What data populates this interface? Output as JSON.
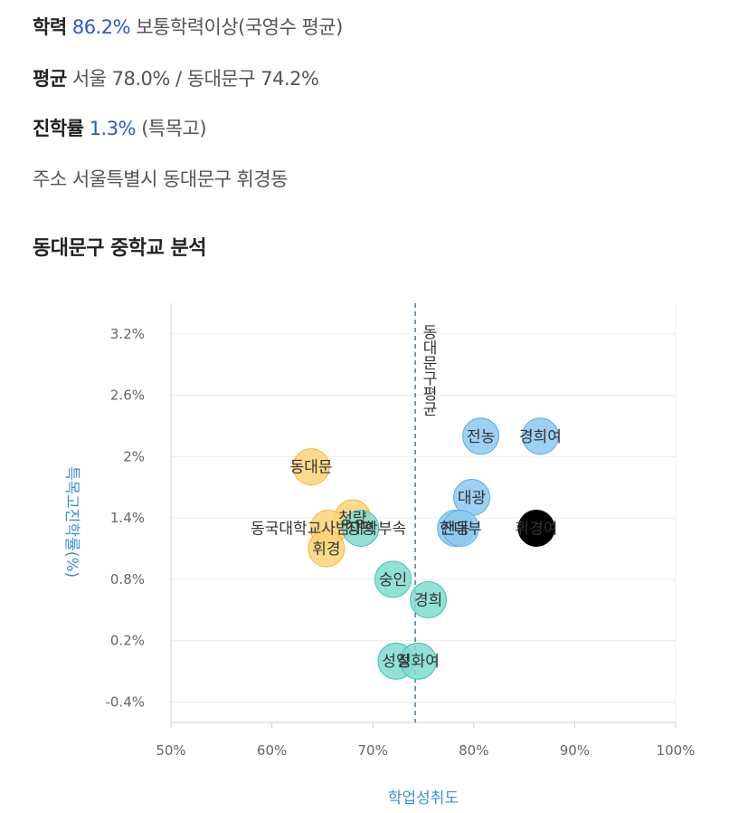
{
  "info": {
    "scholastic": {
      "label": "학력",
      "value": "86.2%",
      "desc": "보통학력이상(국영수 평균)"
    },
    "average": {
      "label": "평균",
      "text": "서울 78.0% / 동대문구 74.2%"
    },
    "advancement": {
      "label": "진학률",
      "value": "1.3%",
      "desc": "(특목고)"
    },
    "address": {
      "label": "주소",
      "text": "서울특별시 동대문구 휘경동"
    }
  },
  "section_title": "동대문구 중학교 분석",
  "colors": {
    "blue": "#8cc8f0",
    "blue_stroke": "#5aaee6",
    "teal": "#7fdccf",
    "teal_stroke": "#44c2b2",
    "yellow": "#fbd478",
    "yellow_stroke": "#f0b93a",
    "highlight": "#000000",
    "avg_line": "#2a5b7a",
    "axis_title": "#3f8fd6"
  },
  "chart_data": {
    "type": "scatter",
    "xlabel": "학업성취도",
    "ylabel": "특목고진학률(%)",
    "xlim": [
      50,
      100
    ],
    "ylim": [
      -0.6,
      3.5
    ],
    "x_ticks": [
      "50%",
      "60%",
      "70%",
      "80%",
      "90%",
      "100%"
    ],
    "y_ticks": [
      "3.2%",
      "2.6%",
      "2%",
      "1.4%",
      "0.8%",
      "0.2%",
      "-0.4%"
    ],
    "average_line": {
      "x": 74.2,
      "label": "동대문구평균"
    },
    "points": [
      {
        "name": "전농",
        "x": 80.7,
        "y": 2.2,
        "group": "blue"
      },
      {
        "name": "경희여",
        "x": 86.6,
        "y": 2.2,
        "group": "blue"
      },
      {
        "name": "대광",
        "x": 79.8,
        "y": 1.6,
        "group": "blue"
      },
      {
        "name": "전동",
        "x": 78.2,
        "y": 1.3,
        "group": "blue"
      },
      {
        "name": "한대부",
        "x": 78.7,
        "y": 1.3,
        "group": "blue"
      },
      {
        "name": "휘경여",
        "x": 86.2,
        "y": 1.3,
        "group": "highlight"
      },
      {
        "name": "동대문",
        "x": 63.9,
        "y": 1.9,
        "group": "yellow"
      },
      {
        "name": "청량",
        "x": 68.0,
        "y": 1.4,
        "group": "yellow"
      },
      {
        "name": "동국대학교사범대학부속",
        "x": 65.6,
        "y": 1.3,
        "group": "yellow"
      },
      {
        "name": "휘경",
        "x": 65.4,
        "y": 1.1,
        "group": "yellow"
      },
      {
        "name": "장평",
        "x": 68.8,
        "y": 1.3,
        "group": "teal"
      },
      {
        "name": "숭인",
        "x": 72.0,
        "y": 0.8,
        "group": "teal"
      },
      {
        "name": "경희",
        "x": 75.5,
        "y": 0.6,
        "group": "teal"
      },
      {
        "name": "성일",
        "x": 72.3,
        "y": 0.0,
        "group": "teal"
      },
      {
        "name": "정화여",
        "x": 74.5,
        "y": 0.0,
        "group": "teal"
      }
    ]
  }
}
